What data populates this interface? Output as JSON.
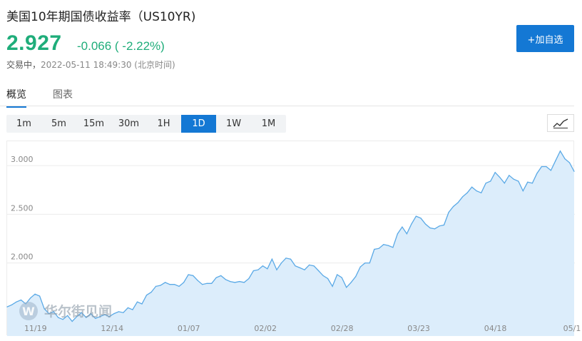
{
  "header": {
    "title": "美国10年期国债收益率（US10YR)",
    "price": "2.927",
    "change": "-0.066 ( -2.22%)",
    "status_label": "交易中，",
    "timestamp": "2022-05-11 18:49:30 (北京时间)",
    "add_button": "+加自选"
  },
  "tabs": [
    {
      "label": "概览",
      "active": true
    },
    {
      "label": "图表",
      "active": false
    }
  ],
  "periods": [
    "1m",
    "5m",
    "15m",
    "30m",
    "1H",
    "1D",
    "1W",
    "1M"
  ],
  "active_period": "1D",
  "watermark": "华尔街见闻",
  "colors": {
    "accent": "#1478d4",
    "up_down_text": "#1fad7a",
    "line": "#5aa9e6",
    "area": "#dcedfb"
  },
  "chart_data": {
    "type": "area",
    "title": "",
    "xlabel": "",
    "ylabel": "",
    "x_ticks": [
      "11/19",
      "12/14",
      "01/07",
      "02/02",
      "02/28",
      "03/23",
      "04/18",
      "05/1"
    ],
    "y_ticks": [
      "2.000",
      "2.500",
      "3.000"
    ],
    "ylim": [
      1.25,
      3.25
    ],
    "grid": true,
    "series": [
      {
        "values": [
          1.55,
          1.57,
          1.6,
          1.62,
          1.58,
          1.64,
          1.68,
          1.66,
          1.53,
          1.48,
          1.5,
          1.44,
          1.42,
          1.46,
          1.4,
          1.45,
          1.49,
          1.44,
          1.48,
          1.43,
          1.45,
          1.47,
          1.45,
          1.48,
          1.5,
          1.49,
          1.54,
          1.52,
          1.6,
          1.58,
          1.67,
          1.7,
          1.76,
          1.77,
          1.8,
          1.78,
          1.78,
          1.76,
          1.8,
          1.88,
          1.87,
          1.82,
          1.78,
          1.79,
          1.79,
          1.85,
          1.87,
          1.83,
          1.81,
          1.8,
          1.81,
          1.8,
          1.84,
          1.92,
          1.93,
          1.97,
          1.94,
          2.04,
          1.93,
          2.0,
          2.05,
          2.04,
          1.97,
          1.95,
          1.93,
          1.98,
          1.97,
          1.92,
          1.87,
          1.84,
          1.76,
          1.88,
          1.85,
          1.75,
          1.8,
          1.86,
          1.96,
          2.0,
          2.0,
          2.14,
          2.15,
          2.19,
          2.18,
          2.16,
          2.3,
          2.37,
          2.3,
          2.4,
          2.48,
          2.46,
          2.4,
          2.36,
          2.35,
          2.38,
          2.39,
          2.52,
          2.58,
          2.62,
          2.68,
          2.72,
          2.78,
          2.74,
          2.72,
          2.82,
          2.84,
          2.93,
          2.88,
          2.82,
          2.9,
          2.86,
          2.84,
          2.74,
          2.83,
          2.82,
          2.92,
          2.99,
          2.99,
          2.95,
          3.05,
          3.15,
          3.07,
          3.03,
          2.94
        ]
      }
    ]
  }
}
